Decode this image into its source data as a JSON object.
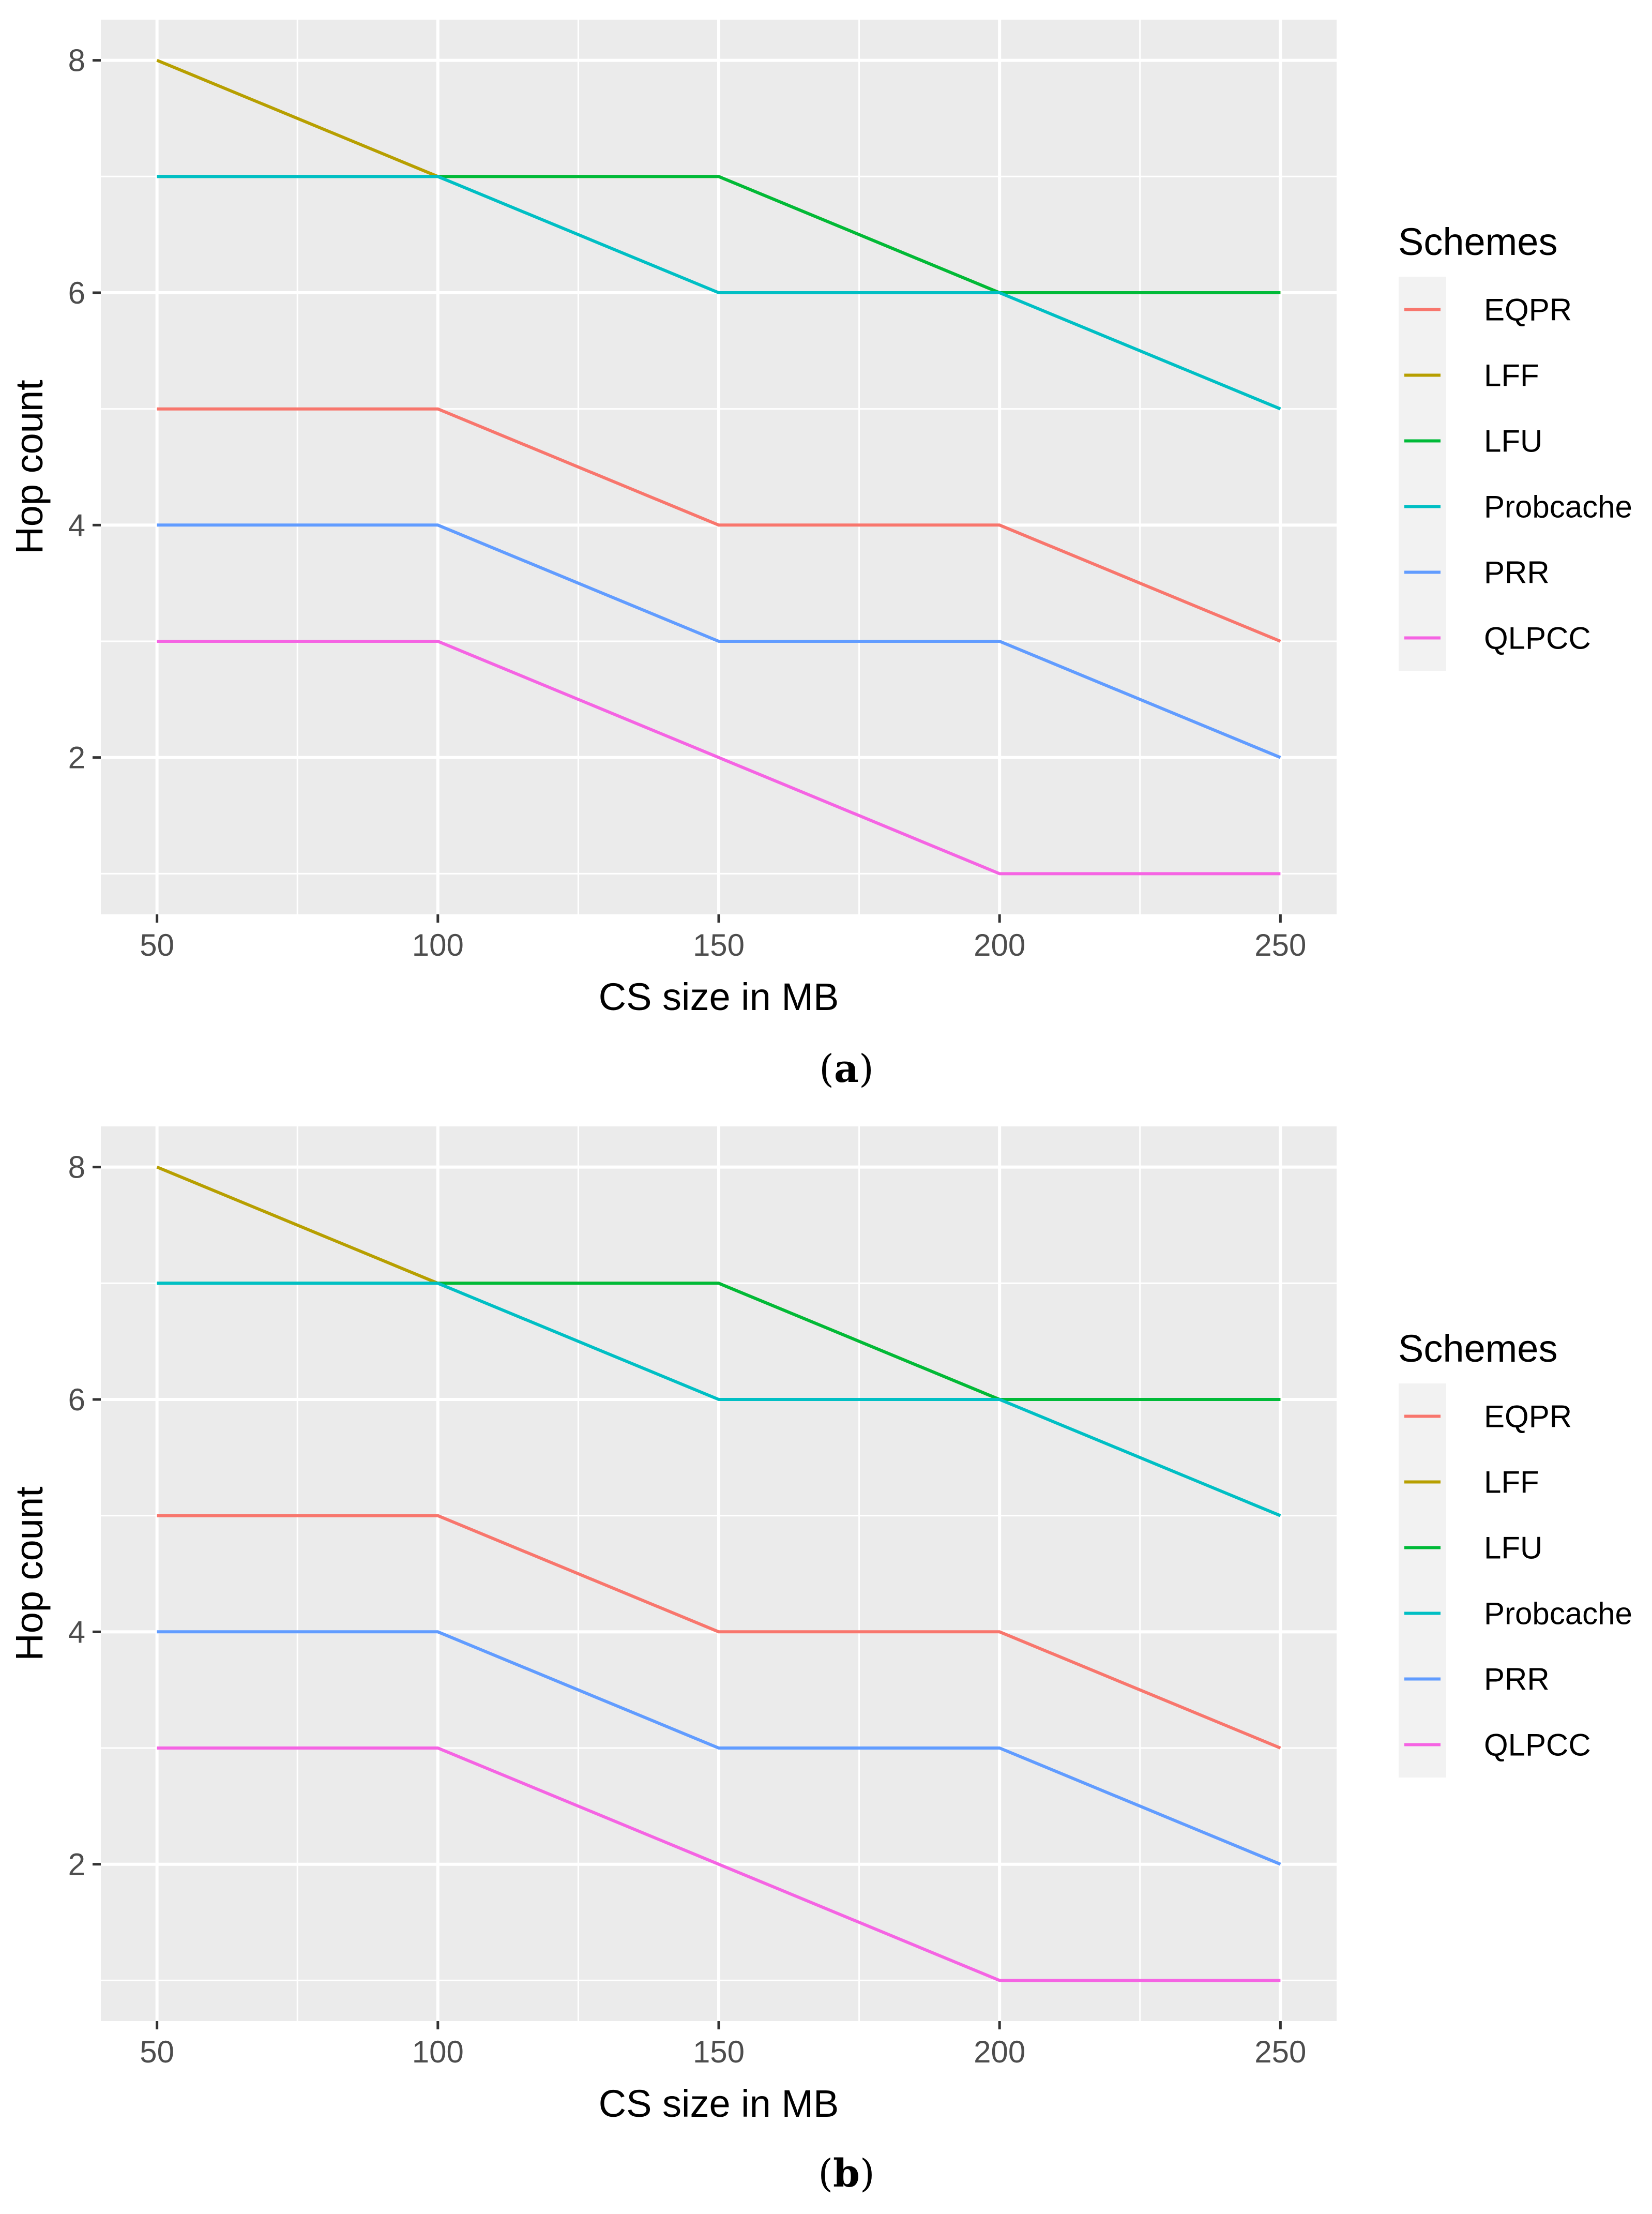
{
  "chart_data": [
    {
      "type": "line",
      "caption_open": "(",
      "caption_label": "a",
      "caption_close": ")",
      "title": "",
      "xlabel": "CS size in MB",
      "ylabel": "Hop count",
      "x": [
        50,
        100,
        150,
        200,
        250
      ],
      "x_ticks": [
        50,
        100,
        150,
        200,
        250
      ],
      "y_ticks": [
        2,
        4,
        6,
        8
      ],
      "xlim": [
        40,
        260
      ],
      "ylim": [
        0.65,
        8.35
      ],
      "grid": true,
      "legend_title": "Schemes",
      "legend_position": "right",
      "series": [
        {
          "name": "EQPR",
          "color": "#F8766D",
          "values": [
            5,
            5,
            4,
            4,
            3
          ]
        },
        {
          "name": "LFF",
          "color": "#B79F00",
          "values": [
            8,
            7,
            7,
            6,
            6
          ]
        },
        {
          "name": "LFU",
          "color": "#00BA38",
          "values": [
            7,
            7,
            7,
            6,
            6
          ]
        },
        {
          "name": "Probcache",
          "color": "#00BFC4",
          "values": [
            7,
            7,
            6,
            6,
            5
          ]
        },
        {
          "name": "PRR",
          "color": "#619CFF",
          "values": [
            4,
            4,
            3,
            3,
            2
          ]
        },
        {
          "name": "QLPCC",
          "color": "#F564E3",
          "values": [
            3,
            3,
            2,
            1,
            1
          ]
        }
      ]
    },
    {
      "type": "line",
      "caption_open": "(",
      "caption_label": "b",
      "caption_close": ")",
      "title": "",
      "xlabel": "CS size in MB",
      "ylabel": "Hop count",
      "x": [
        50,
        100,
        150,
        200,
        250
      ],
      "x_ticks": [
        50,
        100,
        150,
        200,
        250
      ],
      "y_ticks": [
        2,
        4,
        6,
        8
      ],
      "xlim": [
        40,
        260
      ],
      "ylim": [
        0.65,
        8.35
      ],
      "grid": true,
      "legend_title": "Schemes",
      "legend_position": "right",
      "series": [
        {
          "name": "EQPR",
          "color": "#F8766D",
          "values": [
            5,
            5,
            4,
            4,
            3
          ]
        },
        {
          "name": "LFF",
          "color": "#B79F00",
          "values": [
            8,
            7,
            7,
            6,
            6
          ]
        },
        {
          "name": "LFU",
          "color": "#00BA38",
          "values": [
            7,
            7,
            7,
            6,
            6
          ]
        },
        {
          "name": "Probcache",
          "color": "#00BFC4",
          "values": [
            7,
            7,
            6,
            6,
            5
          ]
        },
        {
          "name": "PRR",
          "color": "#619CFF",
          "values": [
            4,
            4,
            3,
            3,
            2
          ]
        },
        {
          "name": "QLPCC",
          "color": "#F564E3",
          "values": [
            3,
            3,
            2,
            1,
            1
          ]
        }
      ]
    }
  ],
  "style": {
    "panel_background": "#EBEBEB",
    "grid_color": "#FFFFFF",
    "axis_text_color": "#4D4D4D",
    "label_color": "#000000",
    "tick_color": "#333333"
  }
}
